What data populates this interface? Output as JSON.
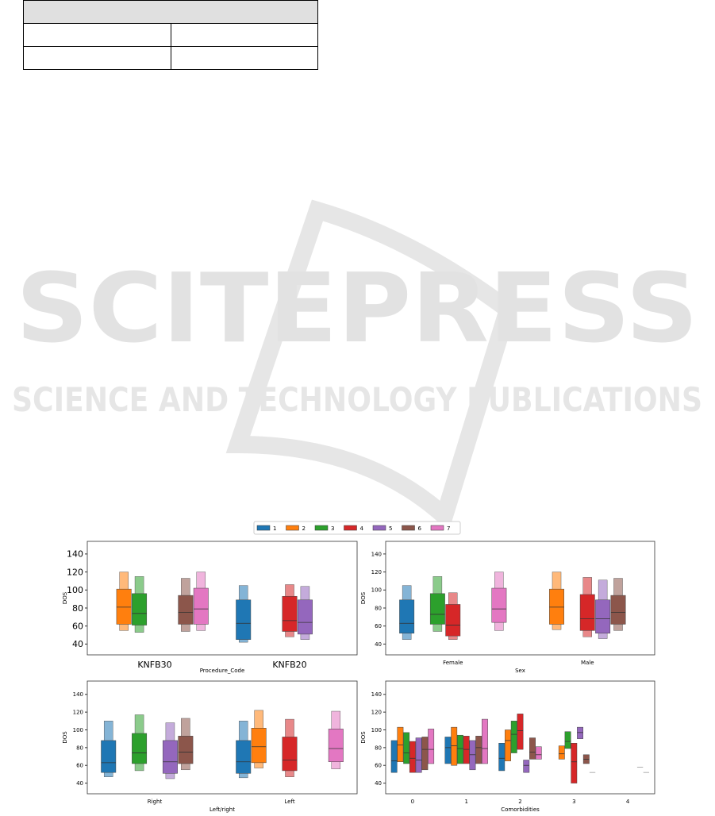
{
  "watermark": {
    "title": "SCITEPRESS",
    "subtitle": "SCIENCE AND TECHNOLOGY PUBLICATIONS"
  },
  "legend": [
    {
      "name": "1",
      "color": "#1f77b4"
    },
    {
      "name": "2",
      "color": "#ff7f0e"
    },
    {
      "name": "3",
      "color": "#2ca02c"
    },
    {
      "name": "4",
      "color": "#d62728"
    },
    {
      "name": "5",
      "color": "#9467bd"
    },
    {
      "name": "6",
      "color": "#8c564b"
    },
    {
      "name": "7",
      "color": "#e377c2"
    }
  ],
  "chart_data": [
    {
      "type": "boxen",
      "xlabel": "Procedure_Code",
      "ylabel": "DOS",
      "categories": [
        "KNFB30",
        "KNFB20"
      ],
      "ylim": [
        28,
        154
      ],
      "yticks": [
        40,
        60,
        80,
        100,
        120,
        140
      ],
      "groups": [
        [
          null,
          {
            "lo": 42,
            "q1": 45,
            "median": 63,
            "q3": 89,
            "hi": 105
          }
        ],
        [
          {
            "lo": 55,
            "q1": 62,
            "median": 81,
            "q3": 101,
            "hi": 120
          },
          null
        ],
        [
          {
            "lo": 53,
            "q1": 61,
            "median": 74,
            "q3": 96,
            "hi": 115
          },
          null
        ],
        [
          null,
          {
            "lo": 48,
            "q1": 54,
            "median": 66,
            "q3": 93,
            "hi": 106
          }
        ],
        [
          null,
          {
            "lo": 45,
            "q1": 51,
            "median": 64,
            "q3": 89,
            "hi": 104
          }
        ],
        [
          {
            "lo": 54,
            "q1": 62,
            "median": 75,
            "q3": 94,
            "hi": 113
          },
          null
        ],
        [
          {
            "lo": 55,
            "q1": 62,
            "median": 79,
            "q3": 102,
            "hi": 120
          },
          null
        ]
      ]
    },
    {
      "type": "boxen",
      "xlabel": "Sex",
      "ylabel": "DOS",
      "categories": [
        "Female",
        "Male"
      ],
      "ylim": [
        28,
        154
      ],
      "yticks": [
        40,
        60,
        80,
        100,
        120,
        140
      ],
      "groups": [
        [
          {
            "lo": 45,
            "q1": 52,
            "median": 63,
            "q3": 89,
            "hi": 105
          },
          null
        ],
        [
          null,
          {
            "lo": 56,
            "q1": 62,
            "median": 81,
            "q3": 101,
            "hi": 120
          }
        ],
        [
          {
            "lo": 54,
            "q1": 62,
            "median": 73,
            "q3": 96,
            "hi": 115
          },
          null
        ],
        [
          {
            "lo": 45,
            "q1": 49,
            "median": 61,
            "q3": 84,
            "hi": 97
          },
          {
            "lo": 48,
            "q1": 55,
            "median": 68,
            "q3": 95,
            "hi": 114
          }
        ],
        [
          null,
          {
            "lo": 46,
            "q1": 52,
            "median": 68,
            "q3": 89,
            "hi": 111
          }
        ],
        [
          null,
          {
            "lo": 55,
            "q1": 62,
            "median": 75,
            "q3": 94,
            "hi": 113
          }
        ],
        [
          {
            "lo": 55,
            "q1": 64,
            "median": 79,
            "q3": 102,
            "hi": 120
          },
          null
        ]
      ]
    },
    {
      "type": "boxen",
      "xlabel": "Left/right",
      "ylabel": "DOS",
      "categories": [
        "Right",
        "Left"
      ],
      "ylim": [
        28,
        155
      ],
      "yticks": [
        40,
        60,
        80,
        100,
        120,
        140
      ],
      "groups": [
        [
          {
            "lo": 47,
            "q1": 52,
            "median": 63,
            "q3": 88,
            "hi": 110
          },
          {
            "lo": 46,
            "q1": 51,
            "median": 64,
            "q3": 88,
            "hi": 110
          }
        ],
        [
          null,
          {
            "lo": 57,
            "q1": 63,
            "median": 81,
            "q3": 102,
            "hi": 122
          }
        ],
        [
          {
            "lo": 54,
            "q1": 62,
            "median": 74,
            "q3": 96,
            "hi": 117
          },
          null
        ],
        [
          null,
          {
            "lo": 47,
            "q1": 54,
            "median": 66,
            "q3": 92,
            "hi": 112
          }
        ],
        [
          {
            "lo": 45,
            "q1": 51,
            "median": 64,
            "q3": 88,
            "hi": 108
          },
          null
        ],
        [
          {
            "lo": 55,
            "q1": 62,
            "median": 75,
            "q3": 93,
            "hi": 113
          },
          null
        ],
        [
          null,
          {
            "lo": 56,
            "q1": 64,
            "median": 79,
            "q3": 101,
            "hi": 121
          }
        ]
      ]
    },
    {
      "type": "boxen",
      "xlabel": "Comorbidities",
      "ylabel": "DOS",
      "categories": [
        "0",
        "1",
        "2",
        "3",
        "4"
      ],
      "ylim": [
        28,
        155
      ],
      "yticks": [
        40,
        60,
        80,
        100,
        120,
        140
      ],
      "groups": [
        [
          {
            "q1": 52,
            "median": 65,
            "q3": 88
          },
          {
            "q1": 62,
            "median": 80,
            "q3": 92
          },
          {
            "q1": 54,
            "median": 68,
            "q3": 85
          },
          null,
          null
        ],
        [
          {
            "q1": 64,
            "median": 83,
            "q3": 103
          },
          {
            "q1": 60,
            "median": 82,
            "q3": 103
          },
          {
            "q1": 65,
            "median": 88,
            "q3": 100
          },
          {
            "q1": 67,
            "median": 73,
            "q3": 82
          },
          null
        ],
        [
          {
            "q1": 62,
            "median": 74,
            "q3": 97
          },
          {
            "q1": 62,
            "median": 79,
            "q3": 94
          },
          {
            "q1": 74,
            "median": 95,
            "q3": 110
          },
          {
            "q1": 79,
            "median": 87,
            "q3": 98
          },
          null
        ],
        [
          {
            "q1": 52,
            "median": 68,
            "q3": 87
          },
          {
            "q1": 62,
            "median": 78,
            "q3": 93
          },
          {
            "q1": 78,
            "median": 99,
            "q3": 118
          },
          {
            "q1": 40,
            "median": 64,
            "q3": 85
          },
          null
        ],
        [
          {
            "q1": 52,
            "median": 66,
            "q3": 91
          },
          {
            "q1": 55,
            "median": 72,
            "q3": 88
          },
          {
            "q1": 52,
            "median": 60,
            "q3": 66
          },
          {
            "q1": 90,
            "median": 97,
            "q3": 103
          },
          null
        ],
        [
          {
            "q1": 55,
            "median": 78,
            "q3": 92
          },
          {
            "q1": 62,
            "median": 80,
            "q3": 93
          },
          {
            "q1": 67,
            "median": 75,
            "q3": 91
          },
          {
            "q1": 62,
            "median": 67,
            "q3": 72
          },
          {
            "median": 58
          }
        ],
        [
          {
            "q1": 62,
            "median": 78,
            "q3": 101
          },
          {
            "q1": 62,
            "median": 79,
            "q3": 112
          },
          {
            "q1": 67,
            "median": 72,
            "q3": 81
          },
          {
            "median": 52
          },
          {
            "median": 52
          }
        ]
      ]
    }
  ]
}
